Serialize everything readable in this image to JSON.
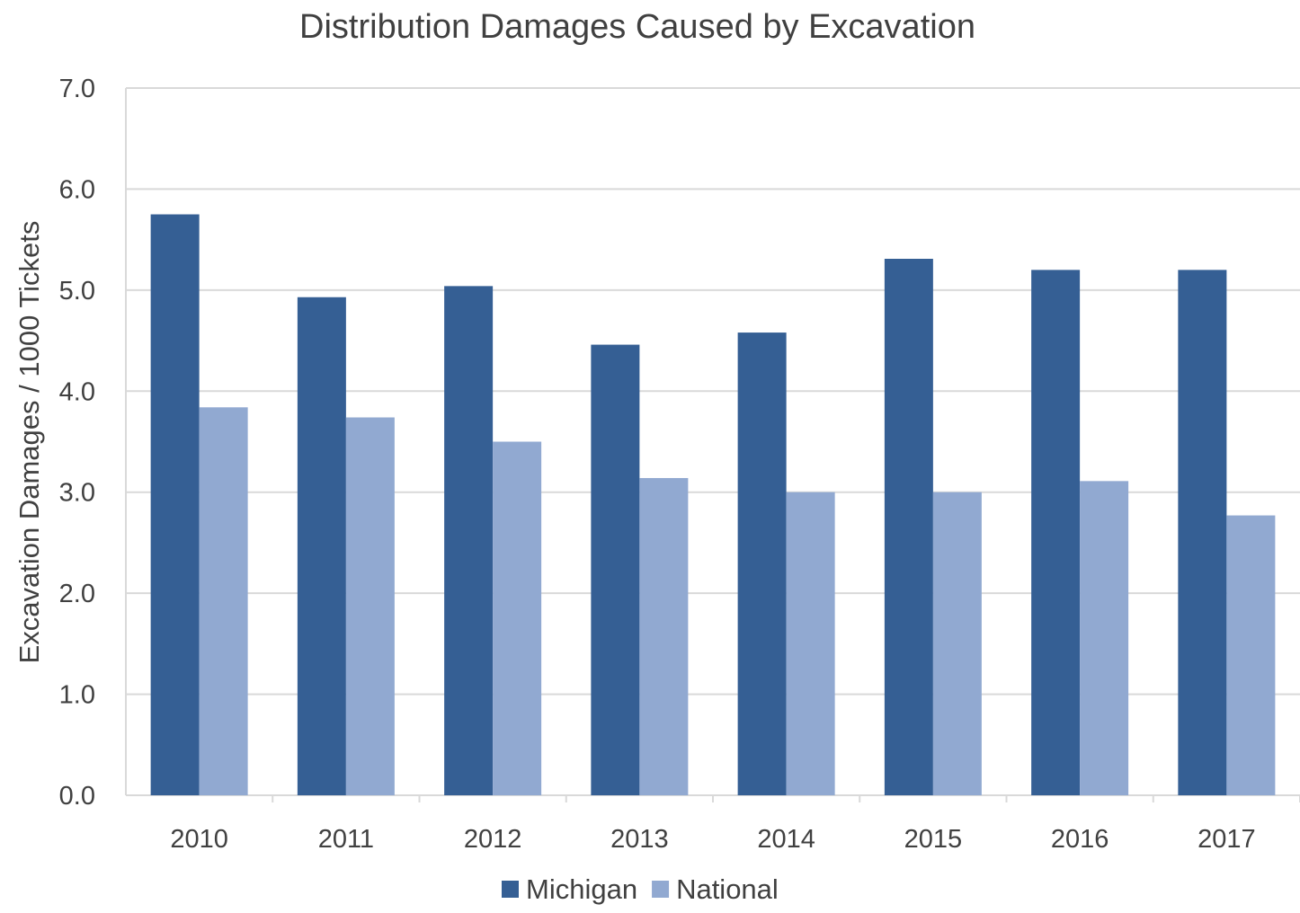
{
  "chart_data": {
    "type": "bar",
    "title": "Distribution Damages Caused by Excavation",
    "xlabel": "",
    "ylabel": "Excavation Damages / 1000 Tickets",
    "categories": [
      "2010",
      "2011",
      "2012",
      "2013",
      "2014",
      "2015",
      "2016",
      "2017"
    ],
    "series": [
      {
        "name": "Michigan",
        "color": "#355f94",
        "values": [
          5.75,
          4.93,
          5.04,
          4.46,
          4.58,
          5.31,
          5.2,
          5.2
        ]
      },
      {
        "name": "National",
        "color": "#91a9d1",
        "values": [
          3.84,
          3.74,
          3.5,
          3.14,
          3.0,
          3.0,
          3.11,
          2.77
        ]
      }
    ],
    "ylim": [
      0,
      7
    ],
    "yticks": [
      "0.0",
      "1.0",
      "2.0",
      "3.0",
      "4.0",
      "5.0",
      "6.0",
      "7.0"
    ],
    "grid": true,
    "legend_position": "bottom",
    "colors": {
      "gridline": "#d9d9d9",
      "text": "#404040"
    }
  }
}
